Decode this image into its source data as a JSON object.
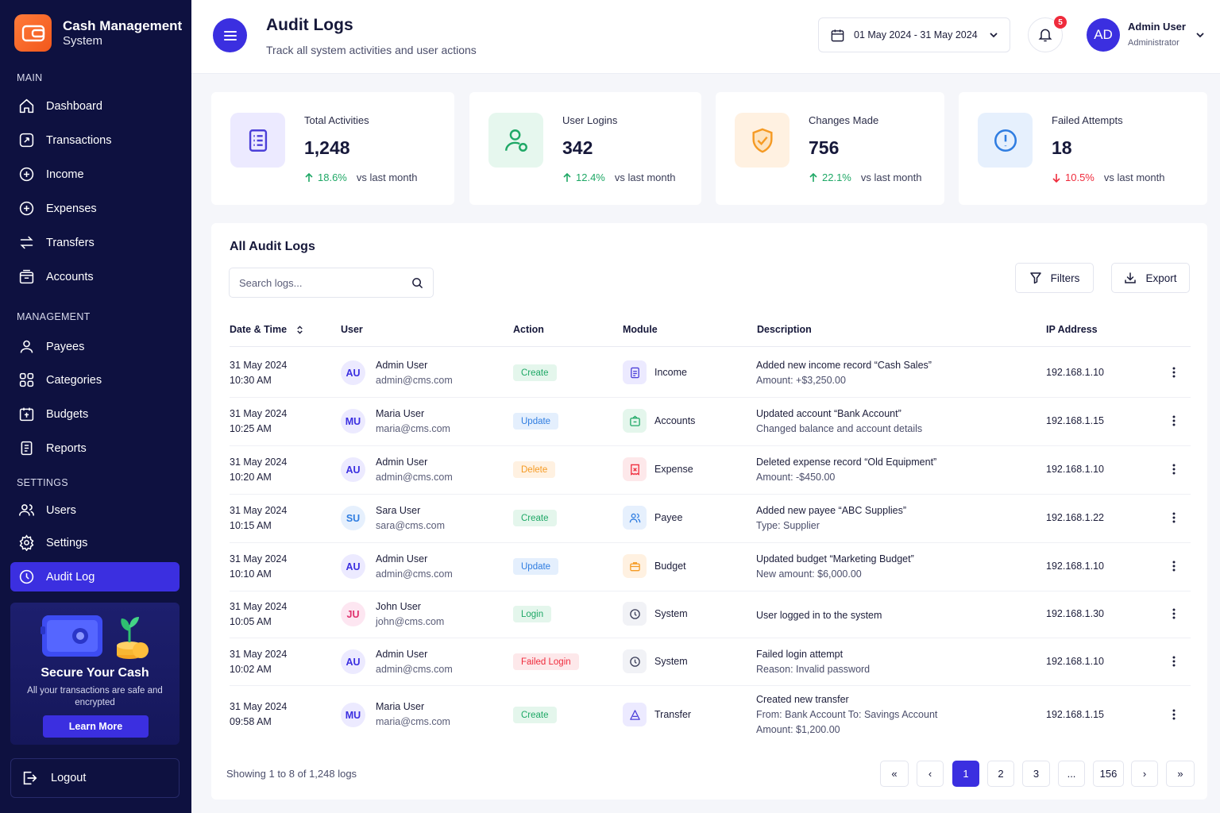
{
  "brand": {
    "title": "Cash Management",
    "subtitle": "System"
  },
  "sidebar": {
    "sections": {
      "main": "MAIN",
      "management": "MANAGEMENT",
      "settings": "SETTINGS"
    },
    "items": [
      {
        "label": "Dashboard",
        "icon": "home-icon"
      },
      {
        "label": "Transactions",
        "icon": "transactions-icon"
      },
      {
        "label": "Income",
        "icon": "plus-circle-icon"
      },
      {
        "label": "Expenses",
        "icon": "plus-circle-icon"
      },
      {
        "label": "Transfers",
        "icon": "transfer-arrows-icon"
      },
      {
        "label": "Accounts",
        "icon": "bank-icon"
      },
      {
        "label": "Payees",
        "icon": "user-icon"
      },
      {
        "label": "Categories",
        "icon": "grid-icon"
      },
      {
        "label": "Budgets",
        "icon": "budget-icon"
      },
      {
        "label": "Reports",
        "icon": "report-icon"
      },
      {
        "label": "Users",
        "icon": "users-icon"
      },
      {
        "label": "Settings",
        "icon": "gear-icon"
      },
      {
        "label": "Audit Log",
        "icon": "audit-icon",
        "active": true
      }
    ],
    "promo": {
      "title": "Secure Your Cash",
      "text": "All your transactions are safe and encrypted",
      "button": "Learn More"
    },
    "logout": "Logout"
  },
  "header": {
    "title": "Audit Logs",
    "subtitle": "Track all system activities and user actions",
    "date_range": "01 May 2024 - 31 May 2024",
    "notification_count": "5",
    "user": {
      "initials": "AD",
      "name": "Admin User",
      "role": "Administrator"
    }
  },
  "stats": [
    {
      "label": "Total Activities",
      "value": "1,248",
      "change": "18.6%",
      "direction": "up",
      "vs": "vs last month",
      "icon": "document-list-icon",
      "color": "#4b3fd8",
      "bg": "#eceaff"
    },
    {
      "label": "User Logins",
      "value": "342",
      "change": "12.4%",
      "direction": "up",
      "vs": "vs last month",
      "icon": "user-check-icon",
      "color": "#1fa866",
      "bg": "#e6f7ee"
    },
    {
      "label": "Changes Made",
      "value": "756",
      "change": "22.1%",
      "direction": "up",
      "vs": "vs last month",
      "icon": "shield-check-icon",
      "color": "#f59a23",
      "bg": "#fff1e1"
    },
    {
      "label": "Failed Attempts",
      "value": "18",
      "change": "10.5%",
      "direction": "down",
      "vs": "vs last month",
      "icon": "alert-circle-icon",
      "color": "#2f7de1",
      "bg": "#e6f0fd"
    }
  ],
  "table": {
    "title": "All Audit Logs",
    "search_placeholder": "Search logs...",
    "filters_label": "Filters",
    "export_label": "Export",
    "columns": [
      "Date & Time",
      "User",
      "Action",
      "Module",
      "Description",
      "IP Address"
    ],
    "rows": [
      {
        "date": "31 May 2024",
        "time": "10:30 AM",
        "initials": "AU",
        "user": "Admin User",
        "email": "admin@cms.com",
        "action": "Create",
        "module": "Income",
        "module_icon": "document-icon",
        "desc": "Added new income record “Cash Sales”",
        "desc_sub": [
          "Amount: +$3,250.00"
        ],
        "ip": "192.168.1.10"
      },
      {
        "date": "31 May 2024",
        "time": "10:25 AM",
        "initials": "MU",
        "user": "Maria User",
        "email": "maria@cms.com",
        "action": "Update",
        "module": "Accounts",
        "module_icon": "bank-icon",
        "desc": "Updated account “Bank Account”",
        "desc_sub": [
          "Changed balance and account details"
        ],
        "ip": "192.168.1.15"
      },
      {
        "date": "31 May 2024",
        "time": "10:20 AM",
        "initials": "AU",
        "user": "Admin User",
        "email": "admin@cms.com",
        "action": "Delete",
        "module": "Expense",
        "module_icon": "receipt-icon",
        "desc": "Deleted expense record “Old Equipment”",
        "desc_sub": [
          "Amount: -$450.00"
        ],
        "ip": "192.168.1.10"
      },
      {
        "date": "31 May 2024",
        "time": "10:15 AM",
        "initials": "SU",
        "user": "Sara User",
        "email": "sara@cms.com",
        "action": "Create",
        "module": "Payee",
        "module_icon": "users-icon",
        "desc": "Added new payee “ABC Supplies”",
        "desc_sub": [
          "Type: Supplier"
        ],
        "ip": "192.168.1.22"
      },
      {
        "date": "31 May 2024",
        "time": "10:10 AM",
        "initials": "AU",
        "user": "Admin User",
        "email": "admin@cms.com",
        "action": "Update",
        "module": "Budget",
        "module_icon": "briefcase-icon",
        "desc": "Updated budget “Marketing Budget”",
        "desc_sub": [
          "New amount: $6,000.00"
        ],
        "ip": "192.168.1.10"
      },
      {
        "date": "31 May 2024",
        "time": "10:05 AM",
        "initials": "JU",
        "user": "John User",
        "email": "john@cms.com",
        "action": "Login",
        "module": "System",
        "module_icon": "system-icon",
        "desc": "User logged in to the system",
        "desc_sub": [],
        "ip": "192.168.1.30"
      },
      {
        "date": "31 May 2024",
        "time": "10:02 AM",
        "initials": "AU",
        "user": "Admin User",
        "email": "admin@cms.com",
        "action": "Failed Login",
        "module": "System",
        "module_icon": "system-icon",
        "desc": "Failed login attempt",
        "desc_sub": [
          "Reason: Invalid password"
        ],
        "ip": "192.168.1.10"
      },
      {
        "date": "31 May 2024",
        "time": "09:58 AM",
        "initials": "MU",
        "user": "Maria User",
        "email": "maria@cms.com",
        "action": "Create",
        "module": "Transfer",
        "module_icon": "transfer-icon",
        "desc": "Created new transfer",
        "desc_sub": [
          "From: Bank Account To: Savings Account",
          "Amount: $1,200.00"
        ],
        "ip": "192.168.1.15"
      }
    ]
  },
  "pagination": {
    "showing": "Showing 1 to 8 of 1,248 logs",
    "buttons": [
      "«",
      "‹",
      "1",
      "2",
      "3",
      "...",
      "156",
      "›",
      "»"
    ],
    "current": "1"
  },
  "colors": {
    "accent": "#3b2fe0",
    "sidebar_bg": "#0e1140",
    "create": "#1fa866",
    "update": "#2f7de1",
    "delete": "#f59a23",
    "failed": "#ef2b3c"
  }
}
